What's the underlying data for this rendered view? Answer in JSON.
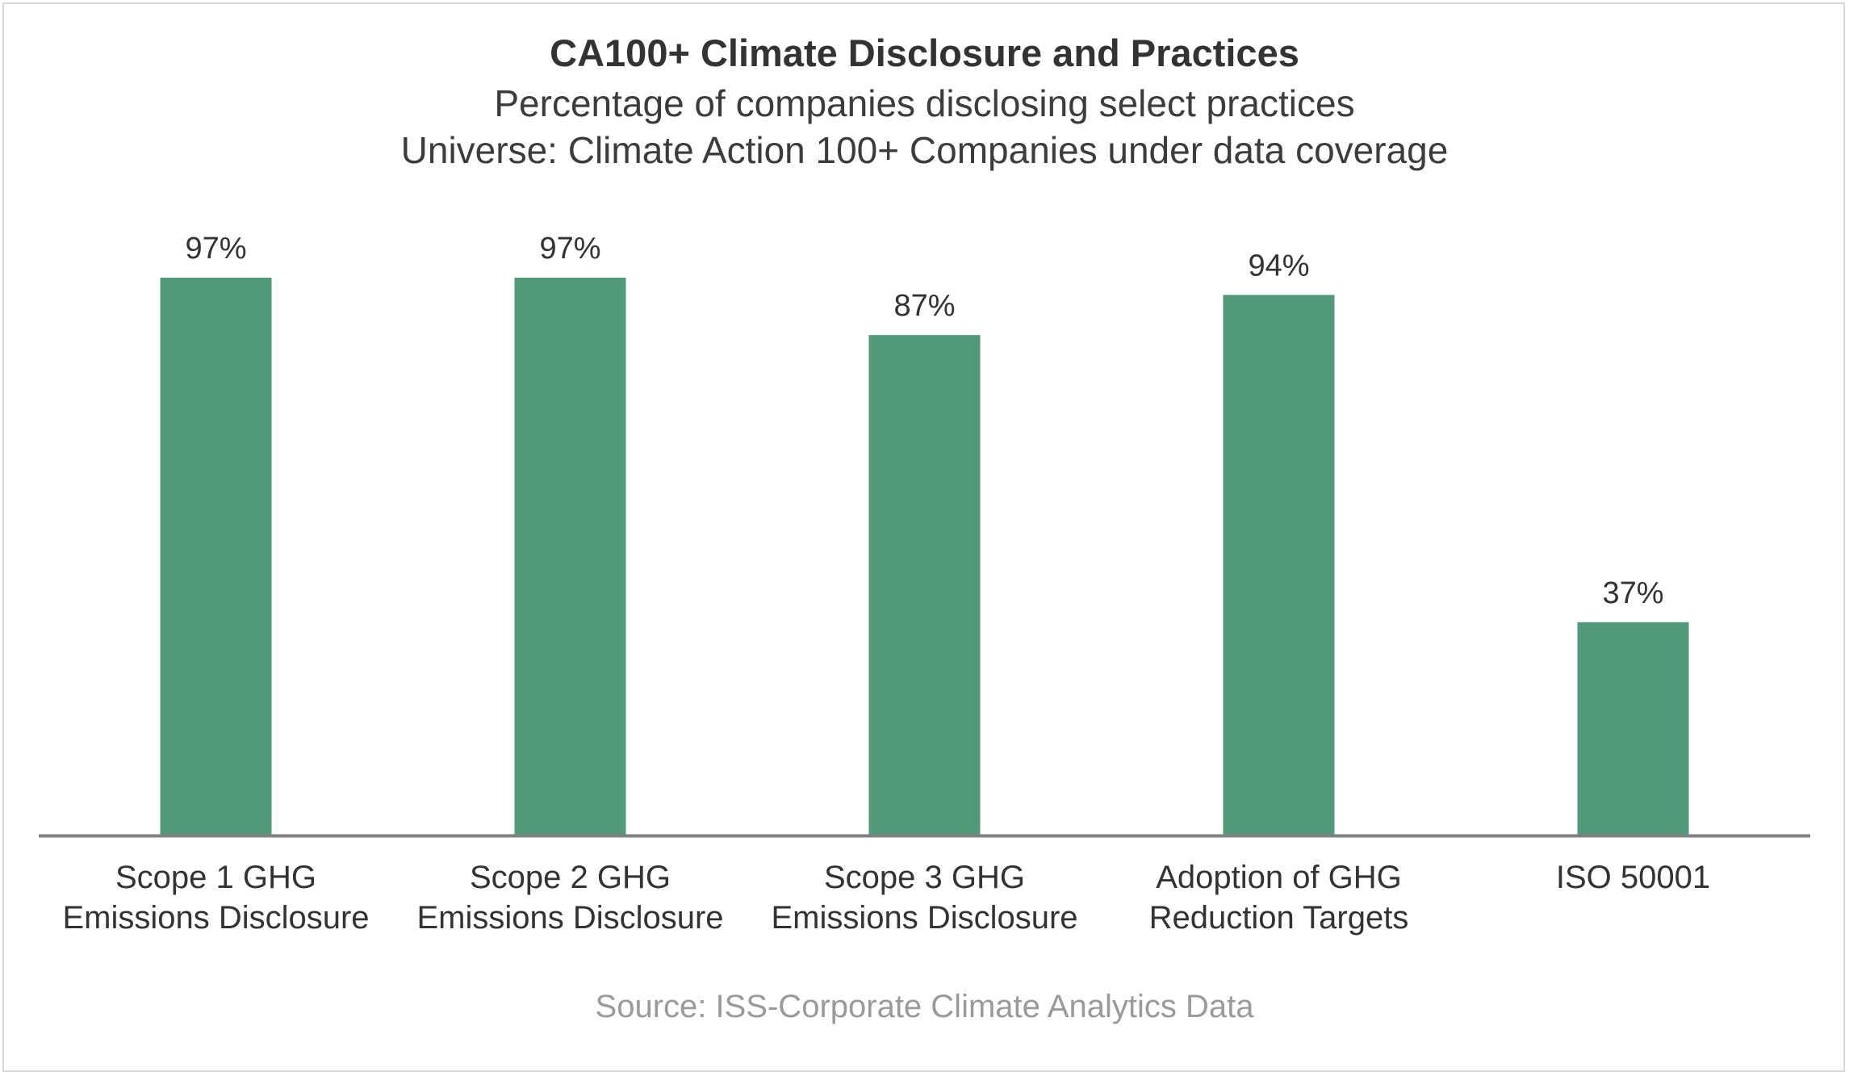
{
  "chart_data": {
    "type": "bar",
    "title": "CA100+ Climate Disclosure and Practices",
    "subtitles": [
      "Percentage of companies disclosing select practices",
      "Universe: Climate Action 100+ Companies under data coverage"
    ],
    "categories": [
      [
        "Scope 1 GHG",
        "Emissions Disclosure"
      ],
      [
        "Scope 2 GHG",
        "Emissions Disclosure"
      ],
      [
        "Scope 3 GHG",
        "Emissions Disclosure"
      ],
      [
        "Adoption of GHG",
        "Reduction Targets"
      ],
      [
        "ISO 50001"
      ]
    ],
    "values": [
      97,
      97,
      87,
      94,
      37
    ],
    "value_labels": [
      "97%",
      "97%",
      "87%",
      "94%",
      "37%"
    ],
    "ylim": [
      0,
      100
    ],
    "xlabel": "",
    "ylabel": "",
    "grid": false,
    "legend": "none",
    "bar_color": "#52997a",
    "axis_color": "#808080",
    "source": "Source: ISS-Corporate Climate Analytics Data"
  }
}
